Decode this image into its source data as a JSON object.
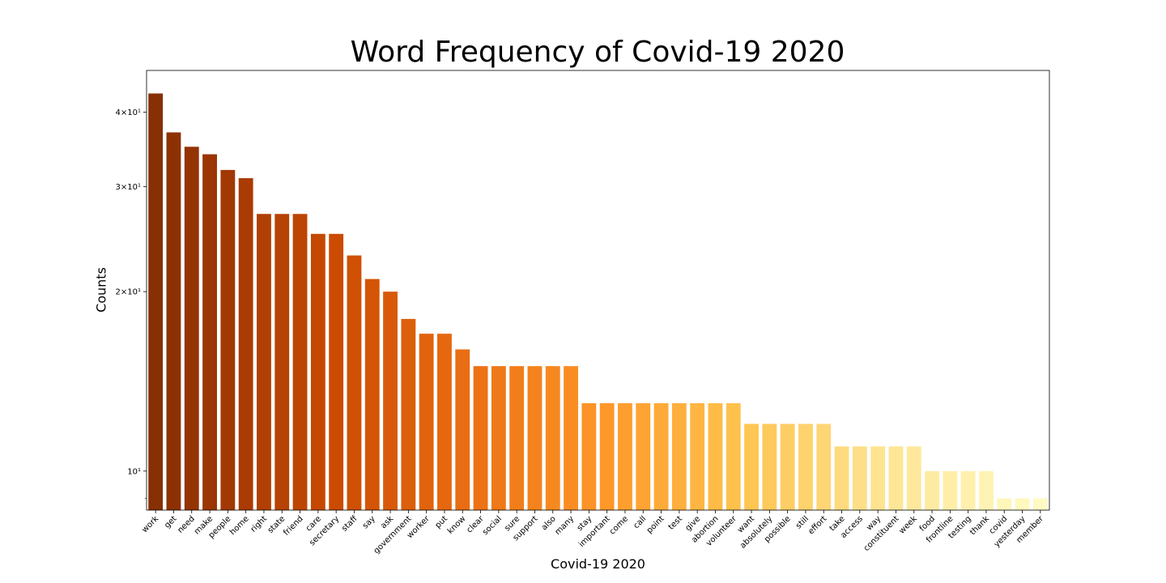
{
  "chart_data": {
    "type": "bar",
    "title": "Word Frequency of Covid-19 2020",
    "xlabel": "Covid-19 2020",
    "ylabel": "Counts",
    "yscale": "log",
    "ylim": [
      8.6,
      47
    ],
    "grid": false,
    "legend": "none",
    "y_ticks": [
      {
        "value": 10,
        "label": "10¹"
      },
      {
        "value": 20,
        "label": "2×10¹"
      },
      {
        "value": 30,
        "label": "3×10¹"
      },
      {
        "value": 40,
        "label": "4×10¹"
      }
    ],
    "categories": [
      "work",
      "get",
      "need",
      "make",
      "people",
      "home",
      "right",
      "state",
      "friend",
      "care",
      "secretary",
      "staff",
      "say",
      "ask",
      "government",
      "worker",
      "put",
      "know",
      "clear",
      "social",
      "sure",
      "support",
      "also",
      "many",
      "stay",
      "important",
      "come",
      "call",
      "point",
      "test",
      "give",
      "abortion",
      "volunteer",
      "want",
      "absolutely",
      "possible",
      "still",
      "effort",
      "take",
      "access",
      "way",
      "constituent",
      "week",
      "food",
      "frontline",
      "testing",
      "thank",
      "covid",
      "yesterday",
      "member"
    ],
    "values": [
      43,
      37,
      35,
      34,
      32,
      31,
      27,
      27,
      27,
      25,
      25,
      23,
      21,
      20,
      18,
      17,
      17,
      16,
      15,
      15,
      15,
      15,
      15,
      15,
      13,
      13,
      13,
      13,
      13,
      13,
      13,
      13,
      13,
      12,
      12,
      12,
      12,
      12,
      11,
      11,
      11,
      11,
      11,
      10,
      10,
      10,
      10,
      9,
      9,
      9
    ],
    "colormap": "YlOrBr_r",
    "color_dark": "#662506",
    "color_light": "#fff7bc"
  }
}
